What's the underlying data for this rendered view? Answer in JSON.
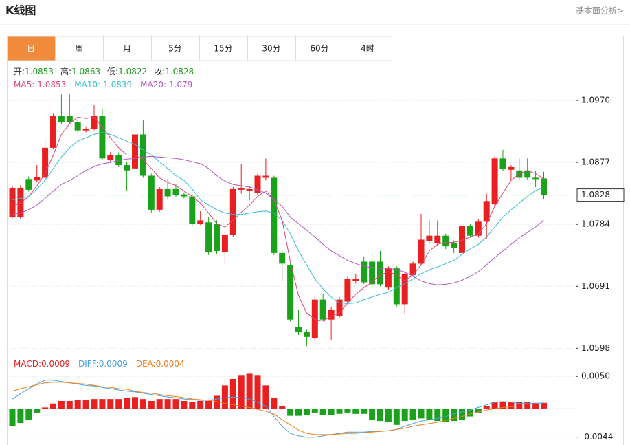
{
  "header": {
    "title": "K线图",
    "link": "基本面分析>"
  },
  "tabs": [
    "日",
    "周",
    "月",
    "5分",
    "15分",
    "30分",
    "60分",
    "4时"
  ],
  "active_tab": 0,
  "chart_data": [
    {
      "type": "candlestick",
      "ohlc_labels": [
        "开:",
        "高:",
        "低:",
        "收:"
      ],
      "up_color": "#ea1f1f",
      "down_color": "#1aa31a",
      "open": [
        1.0795,
        1.0795,
        1.0852,
        1.085,
        1.0854,
        1.0899,
        1.0947,
        1.0947,
        1.0937,
        1.0925,
        1.0927,
        1.0947,
        1.0881,
        1.0888,
        1.0873,
        1.0868,
        1.0919,
        1.0857,
        1.0806,
        1.0837,
        1.0837,
        1.0829,
        1.0826,
        1.0785,
        1.0787,
        1.0785,
        1.0742,
        1.0768,
        1.0836,
        1.0834,
        1.0831,
        1.0854,
        1.0854,
        1.0741,
        1.0723,
        1.063,
        1.0623,
        1.0613,
        1.0671,
        1.0641,
        1.0646,
        1.0668,
        1.0699,
        1.0728,
        1.0728,
        1.0728,
        1.0689,
        1.0718,
        1.0664,
        1.0708,
        1.0725,
        1.0759,
        1.0756,
        1.0767,
        1.0756,
        1.0741,
        1.0782,
        1.0767,
        1.0788,
        1.0815,
        1.0883,
        1.0866,
        1.0865,
        1.0865,
        1.0854,
        1.0853
      ],
      "high": [
        1.0842,
        1.0843,
        1.0856,
        1.0873,
        1.0914,
        1.095,
        1.0979,
        1.0979,
        1.094,
        1.0931,
        1.0963,
        1.0958,
        1.0893,
        1.0892,
        1.0878,
        1.0922,
        1.094,
        1.086,
        1.084,
        1.0852,
        1.0845,
        1.0832,
        1.0829,
        1.0804,
        1.0795,
        1.079,
        1.0775,
        1.084,
        1.0875,
        1.0842,
        1.086,
        1.0883,
        1.0857,
        1.0745,
        1.0726,
        1.0656,
        1.0626,
        1.0676,
        1.068,
        1.066,
        1.0675,
        1.0705,
        1.071,
        1.0735,
        1.0744,
        1.0744,
        1.0721,
        1.0721,
        1.0714,
        1.0728,
        1.08,
        1.079,
        1.079,
        1.077,
        1.076,
        1.0785,
        1.0785,
        1.0792,
        1.083,
        1.0886,
        1.0896,
        1.0873,
        1.0883,
        1.0883,
        1.0865,
        1.0863
      ],
      "low": [
        1.0793,
        1.0792,
        1.0833,
        1.0848,
        1.0842,
        1.0897,
        1.0934,
        1.0935,
        1.0922,
        1.0922,
        1.0925,
        1.088,
        1.0877,
        1.087,
        1.0834,
        1.0837,
        1.0854,
        1.0802,
        1.0803,
        1.0822,
        1.0825,
        1.0823,
        1.0782,
        1.0783,
        1.0738,
        1.074,
        1.0725,
        1.0765,
        1.083,
        1.082,
        1.0828,
        1.085,
        1.0738,
        1.0699,
        1.0638,
        1.0618,
        1.0601,
        1.0608,
        1.0638,
        1.061,
        1.0643,
        1.0664,
        1.0695,
        1.0694,
        1.069,
        1.0691,
        1.0686,
        1.066,
        1.0649,
        1.0705,
        1.0722,
        1.0755,
        1.0752,
        1.0747,
        1.0741,
        1.0728,
        1.0764,
        1.0764,
        1.0762,
        1.0812,
        1.0864,
        1.085,
        1.0851,
        1.0851,
        1.084,
        1.0822
      ],
      "close": [
        1.0839,
        1.0839,
        1.0836,
        1.0855,
        1.0899,
        1.0947,
        1.0937,
        1.0937,
        1.0925,
        1.0927,
        1.0947,
        1.0883,
        1.0888,
        1.0873,
        1.0865,
        1.0919,
        1.0857,
        1.0806,
        1.0837,
        1.0826,
        1.0828,
        1.0826,
        1.0785,
        1.079,
        1.0742,
        1.0744,
        1.0768,
        1.0837,
        1.0839,
        1.0837,
        1.0857,
        1.0857,
        1.0741,
        1.0725,
        1.0641,
        1.0622,
        1.0615,
        1.0671,
        1.0641,
        1.0656,
        1.0671,
        1.0702,
        1.0702,
        1.0697,
        1.0694,
        1.0694,
        1.0718,
        1.0664,
        1.071,
        1.0725,
        1.0761,
        1.0767,
        1.0767,
        1.0751,
        1.0749,
        1.0782,
        1.0767,
        1.0788,
        1.0819,
        1.0883,
        1.0867,
        1.087,
        1.0854,
        1.0854,
        1.0852,
        1.0828
      ],
      "series": [
        {
          "name": "MA5:",
          "color": "#e0457b",
          "values": [
            1.0811,
            1.0816,
            1.0826,
            1.0842,
            1.086,
            1.0888,
            1.0919,
            1.0935,
            1.0945,
            1.0943,
            1.0945,
            1.093,
            1.0914,
            1.0899,
            1.0888,
            1.0888,
            1.0881,
            1.0868,
            1.0854,
            1.0847,
            1.0842,
            1.0834,
            1.0826,
            1.0816,
            1.0801,
            1.0785,
            1.078,
            1.079,
            1.0802,
            1.0813,
            1.0826,
            1.0834,
            1.0821,
            1.079,
            1.0728,
            1.0677,
            1.0651,
            1.0641,
            1.0639,
            1.0646,
            1.0651,
            1.0666,
            1.0679,
            1.0689,
            1.0697,
            1.0708,
            1.0713,
            1.0708,
            1.0699,
            1.0708,
            1.0723,
            1.0744,
            1.0754,
            1.0757,
            1.0757,
            1.076,
            1.0765,
            1.077,
            1.0785,
            1.0811,
            1.0831,
            1.085,
            1.086,
            1.0865,
            1.086,
            1.0853
          ]
        },
        {
          "name": "MA10:",
          "color": "#35bfd3",
          "values": [
            1.0821,
            1.0823,
            1.0826,
            1.0837,
            1.085,
            1.0868,
            1.0885,
            1.0899,
            1.0909,
            1.0914,
            1.0919,
            1.0922,
            1.0919,
            1.0914,
            1.0909,
            1.0904,
            1.0896,
            1.0888,
            1.0878,
            1.0868,
            1.0857,
            1.085,
            1.0837,
            1.0821,
            1.0813,
            1.0806,
            1.0801,
            1.0799,
            1.0799,
            1.0801,
            1.0803,
            1.0804,
            1.0801,
            1.079,
            1.077,
            1.0744,
            1.0723,
            1.0702,
            1.0687,
            1.0675,
            1.0666,
            1.0665,
            1.0666,
            1.0671,
            1.0675,
            1.0679,
            1.0682,
            1.0689,
            1.0695,
            1.0702,
            1.071,
            1.0716,
            1.072,
            1.0725,
            1.073,
            1.0739,
            1.0747,
            1.0754,
            1.0765,
            1.078,
            1.0795,
            1.0806,
            1.0816,
            1.0826,
            1.0835,
            1.0839
          ]
        },
        {
          "name": "MA20:",
          "color": "#b157c4",
          "values": [
            1.0799,
            1.0801,
            1.0806,
            1.0813,
            1.0823,
            1.0834,
            1.0844,
            1.085,
            1.0857,
            1.0865,
            1.0871,
            1.0875,
            1.0877,
            1.088,
            1.0882,
            1.0883,
            1.0885,
            1.0886,
            1.0885,
            1.0884,
            1.0883,
            1.0881,
            1.0878,
            1.0875,
            1.0868,
            1.0857,
            1.0849,
            1.0844,
            1.0842,
            1.084,
            1.0836,
            1.0831,
            1.0821,
            1.0811,
            1.0795,
            1.0785,
            1.0775,
            1.0765,
            1.0754,
            1.0744,
            1.0737,
            1.073,
            1.0725,
            1.0721,
            1.0719,
            1.0718,
            1.0718,
            1.0716,
            1.0712,
            1.0706,
            1.0699,
            1.0695,
            1.0693,
            1.0694,
            1.0696,
            1.07,
            1.0706,
            1.0713,
            1.0723,
            1.0734,
            1.0744,
            1.0754,
            1.0764,
            1.0772,
            1.078,
            1.079
          ]
        }
      ],
      "ylim": [
        1.0588,
        1.103
      ],
      "yticks": [
        {
          "value": 1.097,
          "label": "1.0970"
        },
        1.0877,
        1.0784,
        1.0691,
        1.0598
      ],
      "grid": true
    },
    {
      "type": "macd",
      "series": [
        {
          "name": "MACD:",
          "up_color": "#ea1f1f",
          "down_color": "#1aa31a",
          "values": [
            -0.0027,
            -0.0022,
            -0.0017,
            -0.0006,
            0.0002,
            0.0008,
            0.0012,
            0.0012,
            0.0013,
            0.0013,
            0.0015,
            0.0015,
            0.0015,
            0.0015,
            0.0017,
            0.0018,
            0.0015,
            0.0012,
            0.0015,
            0.0015,
            0.0015,
            0.0012,
            0.001,
            0.0012,
            0.0012,
            0.002,
            0.0036,
            0.0046,
            0.0052,
            0.0054,
            0.0052,
            0.0036,
            0.0017,
            0.0004,
            -0.0011,
            -0.0011,
            -0.001,
            -0.0006,
            -0.001,
            -0.001,
            -0.0008,
            -0.0006,
            -0.0008,
            -0.0008,
            -0.0017,
            -0.0019,
            -0.002,
            -0.0025,
            -0.0019,
            -0.0017,
            -0.0015,
            -0.0017,
            -0.0019,
            -0.0021,
            -0.0019,
            -0.0017,
            -0.0012,
            -0.0006,
            0.0004,
            0.001,
            0.0011,
            0.0011,
            0.001,
            0.001,
            0.0009,
            0.0009
          ]
        },
        {
          "name": "DIFF:",
          "color": "#4a9fe0",
          "values": [
            0.0015,
            0.0023,
            0.0031,
            0.0038,
            0.0044,
            0.0044,
            0.0042,
            0.004,
            0.0038,
            0.0036,
            0.0035,
            0.0033,
            0.0031,
            0.0029,
            0.0027,
            0.0026,
            0.0024,
            0.0022,
            0.002,
            0.0018,
            0.0017,
            0.0015,
            0.0014,
            0.0013,
            0.0013,
            0.0015,
            0.0017,
            0.0018,
            0.0017,
            0.0015,
            0.001,
            0.0004,
            -0.0012,
            -0.0027,
            -0.0038,
            -0.0042,
            -0.0044,
            -0.0044,
            -0.0042,
            -0.004,
            -0.0038,
            -0.0036,
            -0.0036,
            -0.0036,
            -0.0035,
            -0.0035,
            -0.0034,
            -0.0032,
            -0.0027,
            -0.0023,
            -0.0019,
            -0.0017,
            -0.0015,
            -0.0012,
            -0.0008,
            -0.0005,
            -0.0002,
            0.0002,
            0.0006,
            0.001,
            0.0011,
            0.001,
            0.0008,
            0.0008,
            0.0008,
            0.0009
          ]
        },
        {
          "name": "DEA:",
          "color": "#f07e1c",
          "values": [
            0.0027,
            0.0031,
            0.0034,
            0.0037,
            0.004,
            0.0041,
            0.0041,
            0.004,
            0.0039,
            0.0038,
            0.0036,
            0.0034,
            0.0033,
            0.0031,
            0.003,
            0.0027,
            0.0025,
            0.0024,
            0.0022,
            0.002,
            0.0019,
            0.0017,
            0.0015,
            0.0014,
            0.0013,
            0.0011,
            0.0008,
            0.0006,
            0.0004,
            0.0002,
            -0.0001,
            -0.0004,
            -0.0008,
            -0.0017,
            -0.0025,
            -0.0033,
            -0.0038,
            -0.004,
            -0.004,
            -0.004,
            -0.0039,
            -0.0038,
            -0.0038,
            -0.0037,
            -0.0036,
            -0.0035,
            -0.0034,
            -0.0032,
            -0.003,
            -0.0027,
            -0.0025,
            -0.0023,
            -0.0021,
            -0.0018,
            -0.0015,
            -0.0012,
            -0.0008,
            -0.0005,
            -0.0002,
            0.0,
            0.0002,
            0.0003,
            0.0004,
            0.0004,
            0.0004,
            0.0004
          ]
        }
      ],
      "ylim": [
        -0.0056,
        0.0081
      ],
      "yticks": [
        {
          "value": 0.005,
          "label": "0.0050"
        },
        -0.0044
      ],
      "grid": true
    }
  ]
}
